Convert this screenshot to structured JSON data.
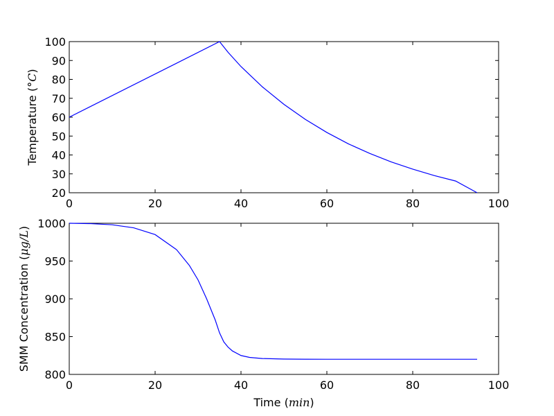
{
  "chart_data": [
    {
      "type": "line",
      "title": "",
      "xlabel": "",
      "ylabel_text": "Temperature (",
      "ylabel_unit": "°C",
      "ylabel_close": ")",
      "xlim": [
        0,
        100
      ],
      "ylim": [
        20,
        100
      ],
      "xticks": [
        "0",
        "20",
        "40",
        "60",
        "80",
        "100"
      ],
      "yticks": [
        "20",
        "30",
        "40",
        "50",
        "60",
        "70",
        "80",
        "90",
        "100"
      ],
      "grid": false,
      "color": "#0000ff",
      "series": [
        {
          "x": [
            0,
            35,
            37,
            40,
            45,
            50,
            55,
            60,
            65,
            70,
            75,
            80,
            85,
            90,
            95
          ],
          "y": [
            60,
            100,
            94.3,
            86.8,
            76.0,
            66.8,
            58.8,
            51.9,
            45.9,
            40.8,
            36.3,
            32.5,
            29.1,
            26.2,
            20
          ]
        }
      ]
    },
    {
      "type": "line",
      "title": "",
      "xlabel_text": "Time (",
      "xlabel_unit": "min",
      "xlabel_close": ")",
      "ylabel_text": "SMM Concentration (",
      "ylabel_unit": "μg/L",
      "ylabel_close": ")",
      "xlim": [
        0,
        100
      ],
      "ylim": [
        800,
        1000
      ],
      "xticks": [
        "0",
        "20",
        "40",
        "60",
        "80",
        "100"
      ],
      "yticks": [
        "800",
        "850",
        "900",
        "950",
        "1000"
      ],
      "grid": false,
      "color": "#0000ff",
      "series": [
        {
          "x": [
            0,
            5,
            10,
            15,
            20,
            25,
            28,
            30,
            32,
            34,
            35,
            36,
            37,
            38,
            40,
            42,
            45,
            50,
            55,
            60,
            70,
            80,
            90,
            95
          ],
          "y": [
            1000,
            999.5,
            998,
            994,
            985,
            965,
            944,
            925,
            900,
            872,
            855,
            843,
            836,
            831,
            825,
            822.5,
            821,
            820.3,
            820.1,
            820,
            820,
            820,
            820,
            820
          ]
        }
      ]
    }
  ]
}
